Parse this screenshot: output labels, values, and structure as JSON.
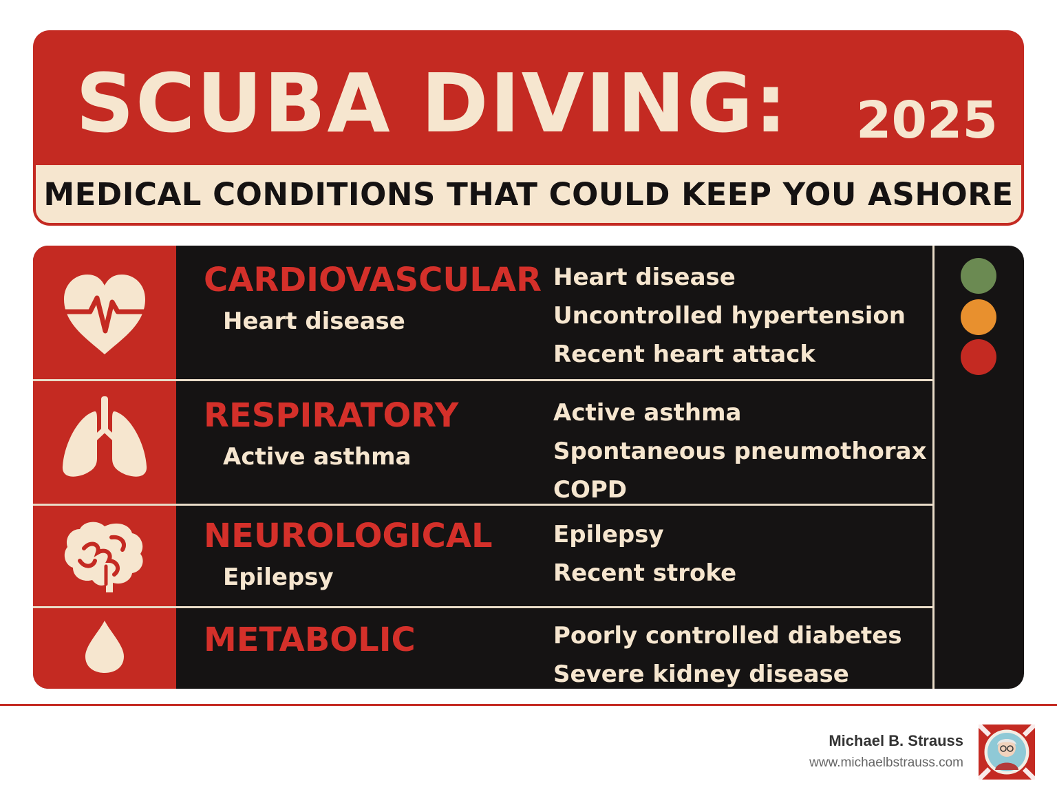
{
  "header": {
    "title": "SCUBA DIVING:",
    "year": "2025",
    "subtitle": "MEDICAL CONDITIONS THAT COULD KEEP YOU ASHORE"
  },
  "categories": [
    {
      "name": "CARDIOVASCULAR",
      "example": "Heart disease",
      "icon": "heart-pulse-icon",
      "items": [
        "Heart disease",
        "Uncontrolled hypertension",
        "Recent heart attack"
      ]
    },
    {
      "name": "RESPIRATORY",
      "example": "Active asthma",
      "icon": "lungs-icon",
      "items": [
        "Active asthma",
        "Spontaneous pneumothorax",
        "COPD"
      ]
    },
    {
      "name": "NEUROLOGICAL",
      "example": "Epilepsy",
      "icon": "brain-icon",
      "items": [
        "Epilepsy",
        "Recent stroke"
      ]
    },
    {
      "name": "METABOLIC",
      "example": "",
      "icon": "drop-icon",
      "items": [
        "Poorly controlled diabetes",
        "Severe kidney disease"
      ]
    }
  ],
  "legend_dots": [
    "#6b8a52",
    "#e8902e",
    "#c42a22"
  ],
  "colors": {
    "accent_red": "#c42a22",
    "cream": "#f6e6cf",
    "panel_black": "#151313"
  },
  "footer": {
    "author": "Michael B. Strauss",
    "website": "www.michaelbstrauss.com"
  }
}
